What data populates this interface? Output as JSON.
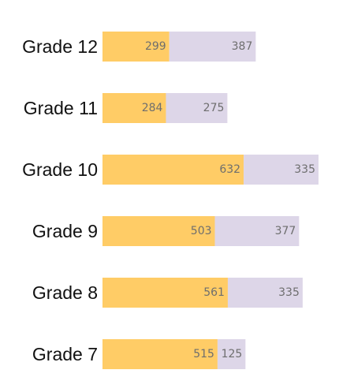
{
  "chart_data": {
    "type": "bar",
    "orientation": "horizontal",
    "stacked": true,
    "categories": [
      "Grade 12",
      "Grade 11",
      "Grade 10",
      "Grade 9",
      "Grade 8",
      "Grade 7"
    ],
    "series": [
      {
        "values": [
          299,
          284,
          632,
          503,
          561,
          515
        ],
        "color": "#FFCC66"
      },
      {
        "values": [
          387,
          275,
          335,
          377,
          335,
          125
        ],
        "color": "#DDD6E8"
      }
    ],
    "xlim": [
      0,
      967
    ],
    "grid": false,
    "legend": "none",
    "title": "",
    "xlabel": "",
    "ylabel": ""
  }
}
